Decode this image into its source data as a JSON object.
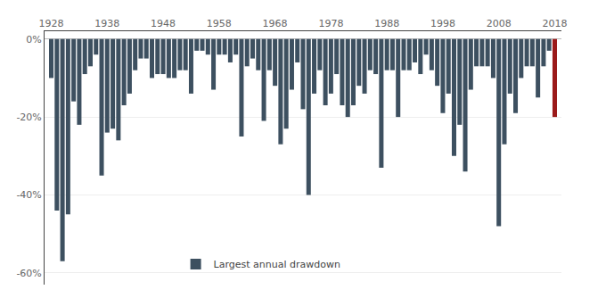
{
  "chart_data": {
    "type": "bar",
    "x": [
      1928,
      1929,
      1930,
      1931,
      1932,
      1933,
      1934,
      1935,
      1936,
      1937,
      1938,
      1939,
      1940,
      1941,
      1942,
      1943,
      1944,
      1945,
      1946,
      1947,
      1948,
      1949,
      1950,
      1951,
      1952,
      1953,
      1954,
      1955,
      1956,
      1957,
      1958,
      1959,
      1960,
      1961,
      1962,
      1963,
      1964,
      1965,
      1966,
      1967,
      1968,
      1969,
      1970,
      1971,
      1972,
      1973,
      1974,
      1975,
      1976,
      1977,
      1978,
      1979,
      1980,
      1981,
      1982,
      1983,
      1984,
      1985,
      1986,
      1987,
      1988,
      1989,
      1990,
      1991,
      1992,
      1993,
      1994,
      1995,
      1996,
      1997,
      1998,
      1999,
      2000,
      2001,
      2002,
      2003,
      2004,
      2005,
      2006,
      2007,
      2008,
      2009,
      2010,
      2011,
      2012,
      2013,
      2014,
      2015,
      2016,
      2017,
      2018
    ],
    "series": [
      {
        "name": "Largest annual drawdown",
        "color": "#3d5060",
        "values": [
          -10,
          -44,
          -57,
          -45,
          -16,
          -22,
          -9,
          -7,
          -4,
          -35,
          -24,
          -23,
          -26,
          -17,
          -14,
          -8,
          -5,
          -5,
          -10,
          -9,
          -9,
          -10,
          -10,
          -8,
          -8,
          -14,
          -3,
          -3,
          -4,
          -13,
          -4,
          -4,
          -6,
          -4,
          -25,
          -7,
          -5,
          -8,
          -21,
          -8,
          -12,
          -27,
          -23,
          -13,
          -6,
          -18,
          -40,
          -14,
          -8,
          -17,
          -14,
          -9,
          -17,
          -20,
          -17,
          -12,
          -14,
          -8,
          -9,
          -33,
          -8,
          -8,
          -20,
          -8,
          -8,
          -6,
          -9,
          -4,
          -8,
          -12,
          -19,
          -14,
          -30,
          -22,
          -34,
          -13,
          -7,
          -7,
          -7,
          -10,
          -48,
          -27,
          -14,
          -19,
          -10,
          -7,
          -7,
          -15,
          -7,
          -3,
          -20
        ],
        "colors": [
          "#3d5060",
          "#3d5060",
          "#3d5060",
          "#3d5060",
          "#3d5060",
          "#3d5060",
          "#3d5060",
          "#3d5060",
          "#3d5060",
          "#3d5060",
          "#3d5060",
          "#3d5060",
          "#3d5060",
          "#3d5060",
          "#3d5060",
          "#3d5060",
          "#3d5060",
          "#3d5060",
          "#3d5060",
          "#3d5060",
          "#3d5060",
          "#3d5060",
          "#3d5060",
          "#3d5060",
          "#3d5060",
          "#3d5060",
          "#3d5060",
          "#3d5060",
          "#3d5060",
          "#3d5060",
          "#3d5060",
          "#3d5060",
          "#3d5060",
          "#3d5060",
          "#3d5060",
          "#3d5060",
          "#3d5060",
          "#3d5060",
          "#3d5060",
          "#3d5060",
          "#3d5060",
          "#3d5060",
          "#3d5060",
          "#3d5060",
          "#3d5060",
          "#3d5060",
          "#3d5060",
          "#3d5060",
          "#3d5060",
          "#3d5060",
          "#3d5060",
          "#3d5060",
          "#3d5060",
          "#3d5060",
          "#3d5060",
          "#3d5060",
          "#3d5060",
          "#3d5060",
          "#3d5060",
          "#3d5060",
          "#3d5060",
          "#3d5060",
          "#3d5060",
          "#3d5060",
          "#3d5060",
          "#3d5060",
          "#3d5060",
          "#3d5060",
          "#3d5060",
          "#3d5060",
          "#3d5060",
          "#3d5060",
          "#3d5060",
          "#3d5060",
          "#3d5060",
          "#3d5060",
          "#3d5060",
          "#3d5060",
          "#3d5060",
          "#3d5060",
          "#3d5060",
          "#3d5060",
          "#3d5060",
          "#3d5060",
          "#3d5060",
          "#3d5060",
          "#3d5060",
          "#3d5060",
          "#3d5060",
          "#3d5060",
          "#9b1a1a"
        ]
      }
    ],
    "xlim": [
      1926.8,
      2019.2
    ],
    "xticks": [
      1928,
      1938,
      1948,
      1958,
      1968,
      1978,
      1988,
      1998,
      2008,
      2018
    ],
    "ylim": [
      -63,
      2
    ],
    "yticks": [
      {
        "value": 0,
        "label": "0%"
      },
      {
        "value": -20,
        "label": "-20%"
      },
      {
        "value": -40,
        "label": "-40%"
      },
      {
        "value": -60,
        "label": "-60%"
      }
    ],
    "y2lim": [
      -63,
      2
    ],
    "y2ticks": [
      {
        "value": 0,
        "label": "0%"
      },
      {
        "value": -20,
        "label": "-20%"
      },
      {
        "value": -40,
        "label": "-40%"
      },
      {
        "value": -60,
        "label": "-60%"
      }
    ],
    "grid": true,
    "legend": "lower center"
  }
}
